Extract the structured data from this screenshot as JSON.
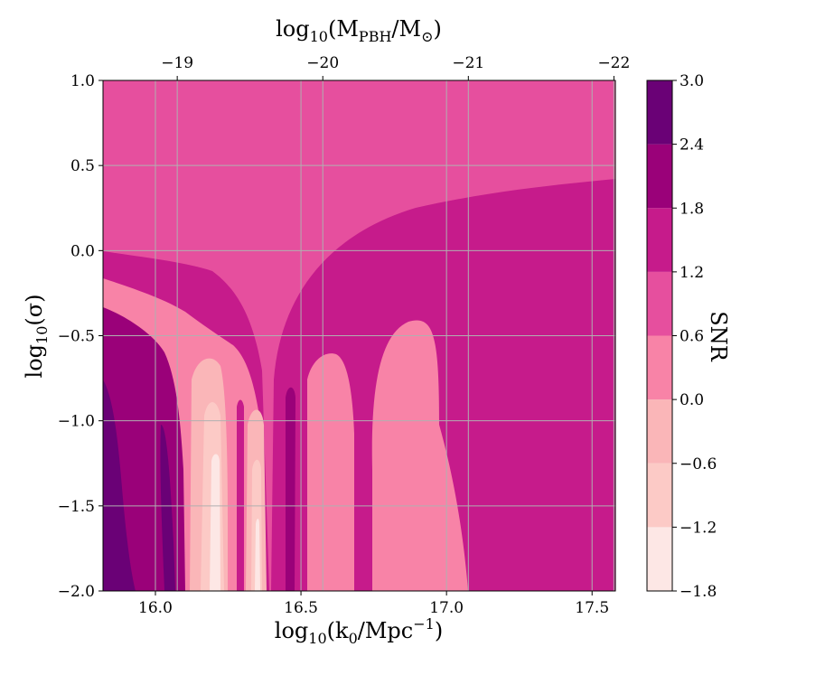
{
  "chart_data": {
    "type": "heatmap",
    "subtype": "filled-contour",
    "xlabel": {
      "base": "log",
      "sub": "10",
      "pre": "(k",
      "sub2": "0",
      "post": "/Mpc",
      "sup": "−1",
      "close": ")"
    },
    "ylabel": {
      "base": "log",
      "sub": "10",
      "pre": "(σ)"
    },
    "top_xlabel": {
      "base": "log",
      "sub": "10",
      "pre": "(M",
      "sub2": "PBH",
      "mid": "/M",
      "sub3": "⊙",
      "close": ")"
    },
    "xlim": [
      15.82,
      17.58
    ],
    "ylim": [
      -2.0,
      1.0
    ],
    "x_ticks": [
      {
        "value": 16.0,
        "label": "16.0"
      },
      {
        "value": 16.5,
        "label": "16.5"
      },
      {
        "value": 17.0,
        "label": "17.0"
      },
      {
        "value": 17.5,
        "label": "17.5"
      }
    ],
    "y_ticks": [
      {
        "value": 1.0,
        "label": "1.0"
      },
      {
        "value": 0.5,
        "label": "0.5"
      },
      {
        "value": 0.0,
        "label": "0.0"
      },
      {
        "value": -0.5,
        "label": "−0.5"
      },
      {
        "value": -1.0,
        "label": "−1.0"
      },
      {
        "value": -1.5,
        "label": "−1.5"
      },
      {
        "value": -2.0,
        "label": "−2.0"
      }
    ],
    "top_ticks": [
      {
        "x_value": 16.075,
        "label": "−19"
      },
      {
        "x_value": 16.575,
        "label": "−20"
      },
      {
        "x_value": 17.075,
        "label": "−21"
      },
      {
        "x_value": 17.575,
        "label": "−22"
      }
    ],
    "grid": true,
    "colorbar": {
      "label": "SNR",
      "levels": [
        -1.8,
        -1.2,
        -0.6,
        0.0,
        0.6,
        1.2,
        1.8,
        2.4,
        3.0
      ],
      "level_labels": [
        "−1.8",
        "−1.2",
        "−0.6",
        "0.0",
        "0.6",
        "1.2",
        "1.8",
        "2.4",
        "3.0"
      ],
      "colors": [
        "#fde7e5",
        "#fccac6",
        "#fab6b8",
        "#f883a7",
        "#e64f9e",
        "#c61b8b",
        "#9a0179",
        "#6a0176"
      ]
    },
    "regions": [
      {
        "level_index": 4,
        "description": "SNR 0.6 to 1.2 background, covers the top of the plot"
      },
      {
        "level_index": 5,
        "description": "SNR 1.2 to 1.8 region, large right wedge and left band"
      },
      {
        "level_index": 3,
        "description": "SNR 0.0 to 0.6 lobes, left-center and right tongue near k0=16.9"
      },
      {
        "level_index": 2,
        "description": "SNR -0.6 to 0.0 narrow strips around k0=16.15-16.35"
      },
      {
        "level_index": 1,
        "description": "SNR -1.2 to -0.6 narrow strips"
      },
      {
        "level_index": 0,
        "description": "SNR -1.8 to -1.2 thinnest strips near k0=16.22"
      },
      {
        "level_index": 6,
        "description": "SNR 1.8 to 2.4 left-edge band"
      },
      {
        "level_index": 7,
        "description": "SNR 2.4 to 3.0 left-edge core"
      }
    ]
  }
}
